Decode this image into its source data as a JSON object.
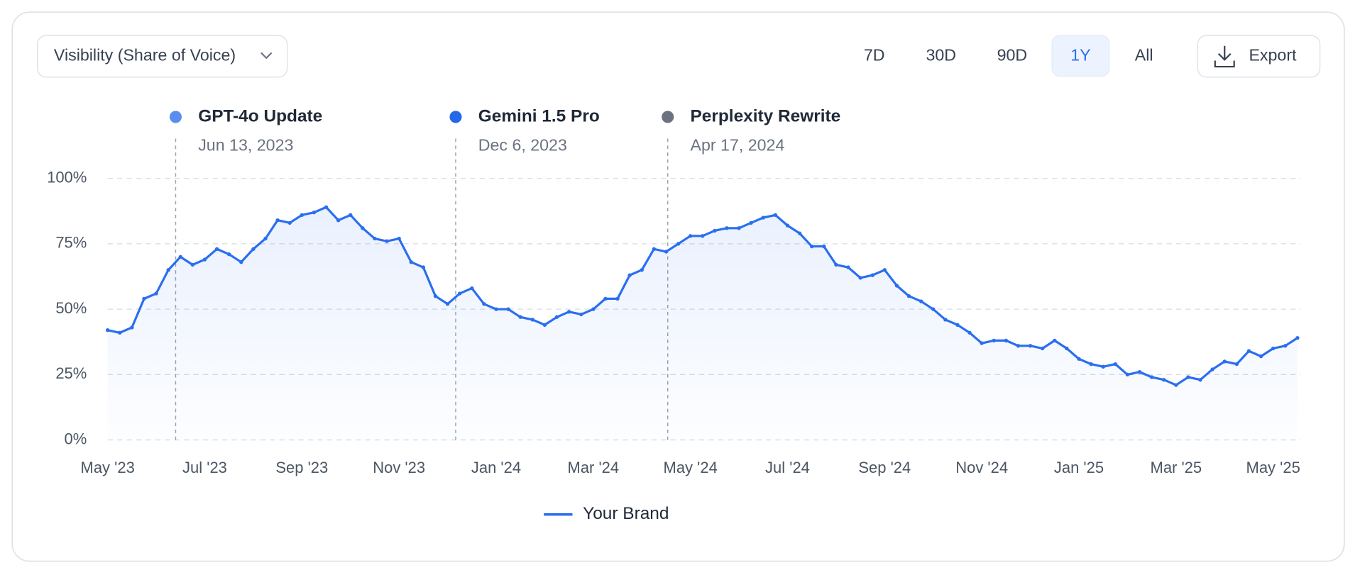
{
  "controls": {
    "metric_dropdown": "Visibility (Share of Voice)",
    "ranges": [
      "7D",
      "30D",
      "90D",
      "1Y",
      "All"
    ],
    "active_range": "1Y",
    "export": "Export"
  },
  "chart_data": {
    "type": "line",
    "categories": [
      "May '23",
      null,
      null,
      null,
      null,
      null,
      null,
      null,
      "Jul '23",
      null,
      null,
      null,
      null,
      null,
      null,
      null,
      "Sep '23",
      null,
      null,
      null,
      null,
      null,
      null,
      null,
      "Nov '23",
      null,
      null,
      null,
      null,
      null,
      null,
      null,
      "Jan '24",
      null,
      null,
      null,
      null,
      null,
      null,
      null,
      "Mar '24",
      null,
      null,
      null,
      null,
      null,
      null,
      null,
      "May '24",
      null,
      null,
      null,
      null,
      null,
      null,
      null,
      "Jul '24",
      null,
      null,
      null,
      null,
      null,
      null,
      null,
      "Sep '24",
      null,
      null,
      null,
      null,
      null,
      null,
      null,
      "Nov '24",
      null,
      null,
      null,
      null,
      null,
      null,
      null,
      "Jan '25",
      null,
      null,
      null,
      null,
      null,
      null,
      null,
      "Mar '25",
      null,
      null,
      null,
      null,
      null,
      null,
      null,
      "May '25",
      null,
      null
    ],
    "series": [
      {
        "name": "Your Brand",
        "color": "#2a6ef0",
        "values": [
          42,
          41,
          43,
          54,
          56,
          65,
          70,
          67,
          69,
          73,
          71,
          68,
          73,
          77,
          84,
          83,
          86,
          87,
          89,
          84,
          86,
          81,
          77,
          76,
          77,
          68,
          66,
          55,
          52,
          56,
          58,
          52,
          50,
          50,
          47,
          46,
          44,
          47,
          49,
          48,
          50,
          54,
          54,
          63,
          65,
          73,
          72,
          75,
          78,
          78,
          80,
          81,
          81,
          83,
          85,
          86,
          82,
          79,
          74,
          74,
          67,
          66,
          62,
          63,
          65,
          59,
          55,
          53,
          50,
          46,
          44,
          41,
          37,
          38,
          38,
          36,
          36,
          35,
          38,
          35,
          31,
          29,
          28,
          29,
          25,
          26,
          24,
          23,
          21,
          24,
          23,
          27,
          30,
          29,
          34,
          32,
          35,
          36,
          39
        ]
      }
    ],
    "ylim": [
      0,
      100
    ],
    "yticks": [
      {
        "value": 0,
        "label": "0%"
      },
      {
        "value": 25,
        "label": "25%"
      },
      {
        "value": 50,
        "label": "50%"
      },
      {
        "value": 75,
        "label": "75%"
      },
      {
        "value": 100,
        "label": "100%"
      }
    ],
    "grid": true,
    "legend": "bottom",
    "annotations": [
      {
        "label": "GPT-4o Update",
        "date": "Jun 13, 2023",
        "color": "#5b8def"
      },
      {
        "label": "Gemini 1.5 Pro",
        "date": "Dec 6, 2023",
        "color": "#2468e8"
      },
      {
        "label": "Perplexity Rewrite",
        "date": "Apr 17, 2024",
        "color": "#6b7280"
      }
    ]
  }
}
